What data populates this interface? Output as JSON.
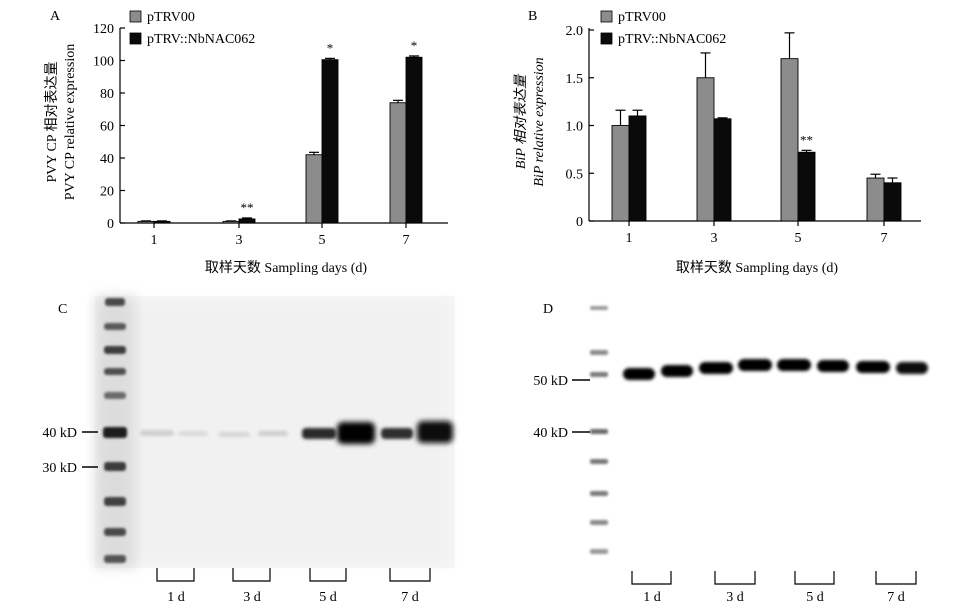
{
  "panels": {
    "A": {
      "letter": "A",
      "chart_data": {
        "type": "bar",
        "categories": [
          "1",
          "3",
          "5",
          "7"
        ],
        "series": [
          {
            "name": "pTRV00",
            "color": "#8c8c8c",
            "values": [
              1,
              1,
              42,
              74
            ],
            "errors": [
              0.3,
              0.3,
              1.5,
              1.5
            ]
          },
          {
            "name": "pTRV::NbNAC062",
            "color": "#0a0a0a",
            "values": [
              1,
              2.5,
              100.5,
              102
            ],
            "errors": [
              0.3,
              0.6,
              0.8,
              0.8
            ]
          }
        ],
        "significance": [
          {
            "category_index": 1,
            "series_index": 1,
            "label": "**"
          },
          {
            "category_index": 2,
            "series_index": 1,
            "label": "*"
          },
          {
            "category_index": 3,
            "series_index": 1,
            "label": "*"
          }
        ],
        "yticks": [
          "0",
          "20",
          "40",
          "60",
          "80",
          "100",
          "120"
        ],
        "ylim": [
          0,
          120
        ],
        "ylabel_cn": "PVY CP 相对表达量",
        "ylabel_en": "PVY CP relative expression",
        "xlabel": "取样天数 Sampling days (d)",
        "legend_position": "top-left"
      }
    },
    "B": {
      "letter": "B",
      "chart_data": {
        "type": "bar",
        "categories": [
          "1",
          "3",
          "5",
          "7"
        ],
        "series": [
          {
            "name": "pTRV00",
            "color": "#8c8c8c",
            "values": [
              1.0,
              1.5,
              1.7,
              0.45
            ],
            "errors": [
              0.16,
              0.26,
              0.27,
              0.04
            ]
          },
          {
            "name": "pTRV::NbNAC062",
            "color": "#0a0a0a",
            "values": [
              1.1,
              1.07,
              0.72,
              0.4
            ],
            "errors": [
              0.06,
              0.01,
              0.02,
              0.05
            ]
          }
        ],
        "significance": [
          {
            "category_index": 2,
            "series_index": 1,
            "label": "**"
          }
        ],
        "yticks": [
          "0",
          "0.5",
          "1.0",
          "1.5",
          "2.0"
        ],
        "ylim": [
          0,
          2.0
        ],
        "ylabel_cn": "BiP 相对表达量",
        "ylabel_en": "BiP relative expression",
        "xlabel": "取样天数 Sampling days (d)",
        "legend_position": "top-left"
      }
    },
    "C": {
      "letter": "C",
      "markers": [
        "40 kD",
        "30 kD"
      ],
      "lanes": [
        "1 d",
        "3 d",
        "5 d",
        "7 d"
      ]
    },
    "D": {
      "letter": "D",
      "markers": [
        "50 kD",
        "40 kD"
      ],
      "lanes": [
        "1 d",
        "3 d",
        "5 d",
        "7 d"
      ]
    }
  }
}
